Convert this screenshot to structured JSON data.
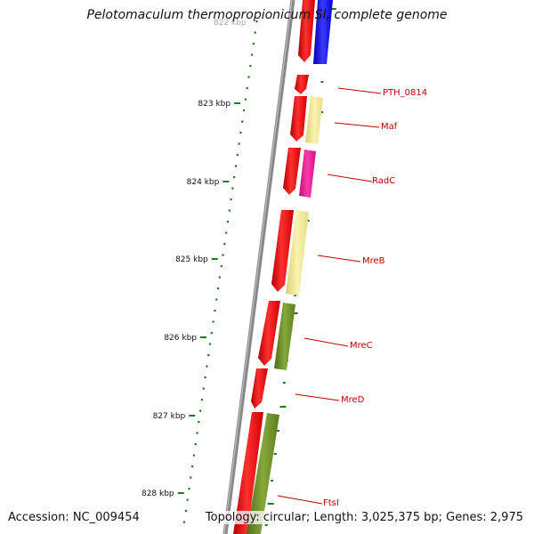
{
  "title": "Pelotomaculum thermopropionicum SI, complete genome",
  "accession": "Accession: NC_009454",
  "summary": "Topology: circular; Length: 3,025,375 bp; Genes: 2,975",
  "top_partial_label": "822 kbp",
  "ticks": [
    {
      "label": "823 kbp",
      "index": 1
    },
    {
      "label": "824 kbp",
      "index": 2
    },
    {
      "label": "825 kbp",
      "index": 3
    },
    {
      "label": "826 kbp",
      "index": 4
    },
    {
      "label": "827 kbp",
      "index": 5
    },
    {
      "label": "828 kbp",
      "index": 6
    }
  ],
  "gene_labels": [
    "PTH_0814",
    "Maf",
    "RadC",
    "MreB",
    "MreC",
    "MreD",
    "FtsI"
  ],
  "colors": {
    "cds": "#ee0000",
    "blue": "#1010ee",
    "pale_yellow": "#f0e68c",
    "magenta": "#ee1493",
    "olive": "#6b8e23",
    "tick": "#1f7a1f",
    "backbone": "#888888",
    "label": "#c00000"
  }
}
